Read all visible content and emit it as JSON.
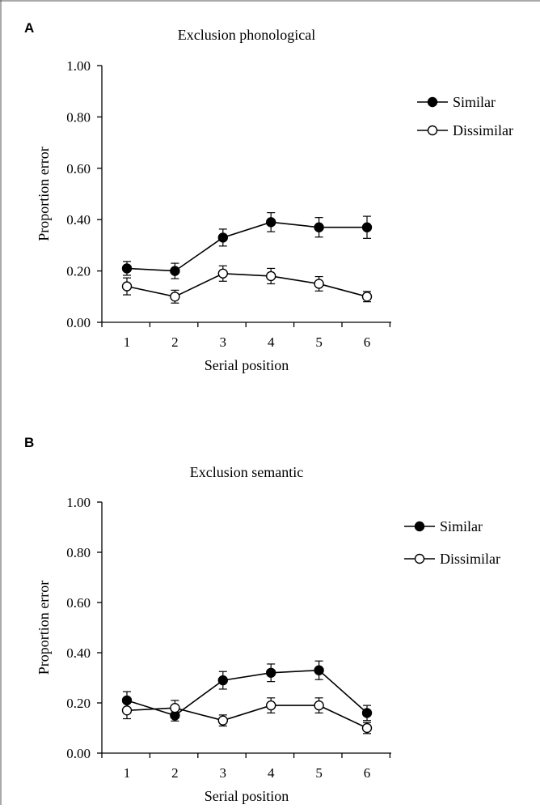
{
  "chart_data": [
    {
      "panel_label": "A",
      "type": "line",
      "title": "Exclusion phonological",
      "xlabel": "Serial position",
      "ylabel": "Proportion error",
      "x": [
        1,
        2,
        3,
        4,
        5,
        6
      ],
      "ylim": [
        0,
        1
      ],
      "yticks": [
        "0.00",
        "0.20",
        "0.40",
        "0.60",
        "0.80",
        "1.00"
      ],
      "grid": false,
      "legend_position": "top-right",
      "series": [
        {
          "name": "Similar",
          "marker": "filled-circle",
          "values": [
            0.21,
            0.2,
            0.33,
            0.39,
            0.37,
            0.37
          ],
          "error": [
            0.027,
            0.03,
            0.033,
            0.037,
            0.038,
            0.043
          ]
        },
        {
          "name": "Dissimilar",
          "marker": "open-circle",
          "values": [
            0.14,
            0.1,
            0.19,
            0.18,
            0.15,
            0.1
          ],
          "error": [
            0.033,
            0.025,
            0.03,
            0.03,
            0.028,
            0.02
          ]
        }
      ]
    },
    {
      "panel_label": "B",
      "type": "line",
      "title": "Exclusion semantic",
      "xlabel": "Serial position",
      "ylabel": "Proportion error",
      "x": [
        1,
        2,
        3,
        4,
        5,
        6
      ],
      "ylim": [
        0,
        1
      ],
      "yticks": [
        "0.00",
        "0.20",
        "0.40",
        "0.60",
        "0.80",
        "1.00"
      ],
      "grid": false,
      "legend_position": "top-right",
      "series": [
        {
          "name": "Similar",
          "marker": "filled-circle",
          "values": [
            0.21,
            0.15,
            0.29,
            0.32,
            0.33,
            0.16
          ],
          "error": [
            0.035,
            0.022,
            0.035,
            0.035,
            0.037,
            0.03
          ]
        },
        {
          "name": "Dissimilar",
          "marker": "open-circle",
          "values": [
            0.17,
            0.18,
            0.13,
            0.19,
            0.19,
            0.1
          ],
          "error": [
            0.033,
            0.03,
            0.022,
            0.03,
            0.03,
            0.022
          ]
        }
      ]
    }
  ]
}
